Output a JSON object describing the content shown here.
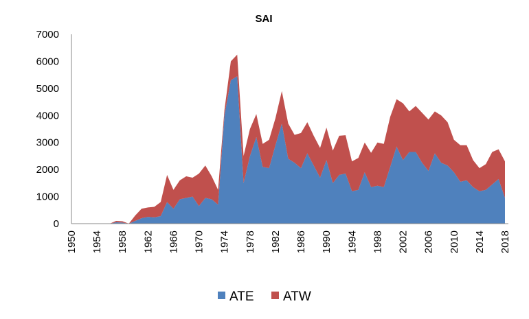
{
  "chart_data": {
    "type": "area",
    "stacked": true,
    "title": "SAI",
    "xlabel": "",
    "ylabel": "",
    "ylim": [
      0,
      7000
    ],
    "yticks": [
      0,
      1000,
      2000,
      3000,
      4000,
      5000,
      6000,
      7000
    ],
    "ytick_labels": [
      "0",
      "1000",
      "2000",
      "3000",
      "4000",
      "5000",
      "6000",
      "7000"
    ],
    "xticks": [
      1950,
      1954,
      1958,
      1962,
      1966,
      1970,
      1974,
      1978,
      1982,
      1986,
      1990,
      1994,
      1998,
      2002,
      2006,
      2010,
      2014,
      2018
    ],
    "xtick_labels": [
      "1950",
      "1954",
      "1958",
      "1962",
      "1966",
      "1970",
      "1974",
      "1978",
      "1982",
      "1986",
      "1990",
      "1994",
      "1998",
      "2002",
      "2006",
      "2010",
      "2014",
      "2018"
    ],
    "grid": false,
    "legend_position": "bottom",
    "x": [
      1950,
      1951,
      1952,
      1953,
      1954,
      1955,
      1956,
      1957,
      1958,
      1959,
      1960,
      1961,
      1962,
      1963,
      1964,
      1965,
      1966,
      1967,
      1968,
      1969,
      1970,
      1971,
      1972,
      1973,
      1974,
      1975,
      1976,
      1977,
      1978,
      1979,
      1980,
      1981,
      1982,
      1983,
      1984,
      1985,
      1986,
      1987,
      1988,
      1989,
      1990,
      1991,
      1992,
      1993,
      1994,
      1995,
      1996,
      1997,
      1998,
      1999,
      2000,
      2001,
      2002,
      2003,
      2004,
      2005,
      2006,
      2007,
      2008,
      2009,
      2010,
      2011,
      2012,
      2013,
      2014,
      2015,
      2016,
      2017,
      2018
    ],
    "series": [
      {
        "name": "ATE",
        "color": "#4F81BD",
        "values": [
          0,
          0,
          0,
          0,
          0,
          0,
          0,
          50,
          40,
          0,
          100,
          200,
          250,
          230,
          280,
          800,
          550,
          900,
          950,
          1000,
          650,
          950,
          900,
          700,
          4000,
          5300,
          5450,
          1500,
          2500,
          3200,
          2100,
          2050,
          2900,
          3700,
          2400,
          2250,
          2050,
          2600,
          2150,
          1700,
          2350,
          1500,
          1800,
          1850,
          1200,
          1250,
          1900,
          1350,
          1400,
          1350,
          2100,
          2850,
          2350,
          2650,
          2650,
          2250,
          1950,
          2600,
          2250,
          2150,
          1900,
          1550,
          1600,
          1350,
          1200,
          1250,
          1450,
          1650,
          950
        ]
      },
      {
        "name": "ATW",
        "color": "#C0504D",
        "values": [
          0,
          0,
          0,
          0,
          0,
          0,
          0,
          50,
          50,
          0,
          200,
          350,
          350,
          390,
          520,
          1000,
          700,
          700,
          800,
          700,
          1200,
          1200,
          850,
          550,
          200,
          700,
          800,
          1000,
          1000,
          850,
          850,
          1050,
          1000,
          1200,
          1300,
          1030,
          1300,
          1150,
          1100,
          1100,
          1200,
          1200,
          1450,
          1420,
          1100,
          1180,
          1100,
          1270,
          1600,
          1600,
          1850,
          1750,
          2100,
          1500,
          1700,
          1850,
          1900,
          1550,
          1750,
          1600,
          1200,
          1350,
          1300,
          1000,
          850,
          950,
          1200,
          1100,
          1350
        ]
      }
    ]
  }
}
